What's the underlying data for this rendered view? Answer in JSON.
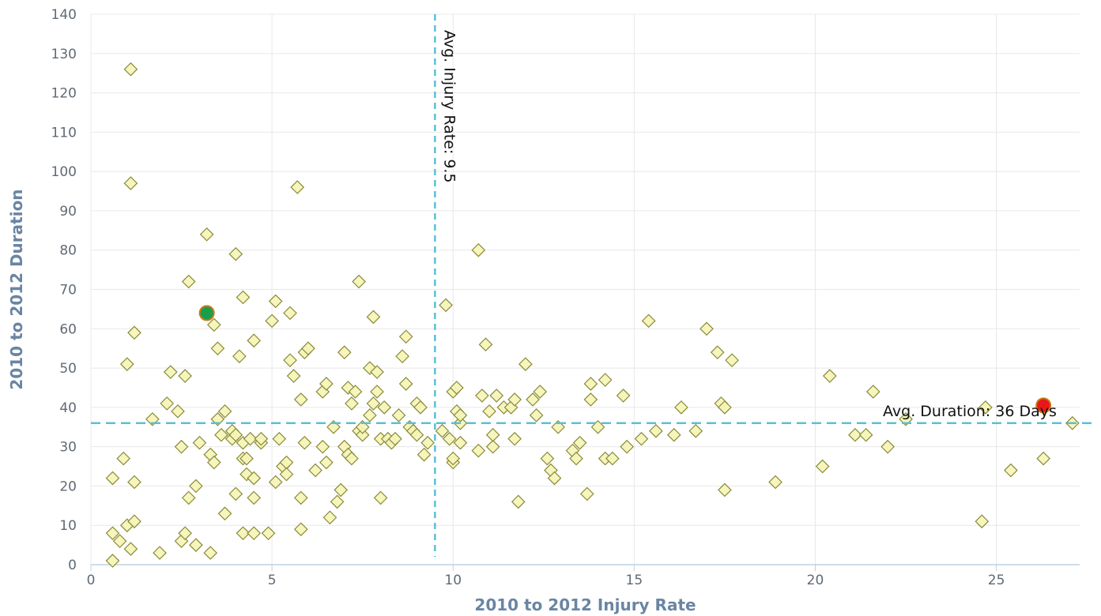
{
  "chart_data": {
    "type": "scatter",
    "title": "",
    "xlabel": "2010 to 2012 Injury Rate",
    "ylabel": "2010 to 2012 Duration",
    "xlim": [
      0,
      27.3
    ],
    "ylim": [
      0,
      140
    ],
    "x_ticks": [
      "0",
      "5",
      "10",
      "15",
      "20",
      "25"
    ],
    "y_ticks": [
      "0",
      "10",
      "20",
      "30",
      "40",
      "50",
      "60",
      "70",
      "80",
      "90",
      "100",
      "110",
      "120",
      "130",
      "140"
    ],
    "grid": true,
    "legend": "none",
    "colors": {
      "point_fill": "#f4f4b8",
      "point_stroke": "#8a8a3a",
      "reference_line": "#5bbfd6",
      "grid": "#e8e8e8",
      "axis_line": "#c0d0e0",
      "highlight_low": "#1a9e4a",
      "highlight_high": "#e81818",
      "highlight_stroke": "#c87a1a"
    },
    "reference_lines": [
      {
        "axis": "x",
        "value": 9.5,
        "label": "Avg. Injury Rate: 9.5"
      },
      {
        "axis": "y",
        "value": 36,
        "label": "Avg. Duration: 36 Days"
      }
    ],
    "series": [
      {
        "points": [
          [
            0.6,
            8
          ],
          [
            0.6,
            22
          ],
          [
            0.6,
            1
          ],
          [
            0.8,
            6
          ],
          [
            0.9,
            27
          ],
          [
            1.0,
            51
          ],
          [
            1.0,
            10
          ],
          [
            1.1,
            126
          ],
          [
            1.1,
            97
          ],
          [
            1.1,
            4
          ],
          [
            1.2,
            11
          ],
          [
            1.2,
            21
          ],
          [
            1.2,
            59
          ],
          [
            1.7,
            37
          ],
          [
            1.9,
            3
          ],
          [
            2.1,
            41
          ],
          [
            2.2,
            49
          ],
          [
            2.4,
            39
          ],
          [
            2.5,
            30
          ],
          [
            2.5,
            6
          ],
          [
            2.6,
            48
          ],
          [
            2.6,
            8
          ],
          [
            2.7,
            72
          ],
          [
            2.7,
            17
          ],
          [
            2.9,
            20
          ],
          [
            2.9,
            5
          ],
          [
            3.0,
            31
          ],
          [
            3.2,
            84
          ],
          [
            3.3,
            28
          ],
          [
            3.3,
            3
          ],
          [
            3.4,
            26
          ],
          [
            3.4,
            61
          ],
          [
            3.5,
            55
          ],
          [
            3.5,
            37
          ],
          [
            3.6,
            33
          ],
          [
            3.7,
            39
          ],
          [
            3.7,
            13
          ],
          [
            3.9,
            34
          ],
          [
            3.9,
            32
          ],
          [
            4.0,
            79
          ],
          [
            4.0,
            33
          ],
          [
            4.0,
            18
          ],
          [
            4.1,
            53
          ],
          [
            4.2,
            68
          ],
          [
            4.2,
            27
          ],
          [
            4.2,
            31
          ],
          [
            4.2,
            8
          ],
          [
            4.3,
            23
          ],
          [
            4.3,
            27
          ],
          [
            4.4,
            32
          ],
          [
            4.5,
            57
          ],
          [
            4.5,
            22
          ],
          [
            4.5,
            17
          ],
          [
            4.5,
            8
          ],
          [
            4.7,
            31
          ],
          [
            4.7,
            32
          ],
          [
            4.9,
            8
          ],
          [
            5.0,
            62
          ],
          [
            5.1,
            67
          ],
          [
            5.1,
            21
          ],
          [
            5.2,
            32
          ],
          [
            5.3,
            25
          ],
          [
            5.4,
            26
          ],
          [
            5.4,
            23
          ],
          [
            5.5,
            52
          ],
          [
            5.5,
            64
          ],
          [
            5.6,
            48
          ],
          [
            5.7,
            96
          ],
          [
            5.8,
            42
          ],
          [
            5.8,
            17
          ],
          [
            5.8,
            9
          ],
          [
            5.9,
            31
          ],
          [
            5.9,
            54
          ],
          [
            6.0,
            55
          ],
          [
            6.2,
            24
          ],
          [
            6.4,
            44
          ],
          [
            6.4,
            30
          ],
          [
            6.5,
            46
          ],
          [
            6.5,
            26
          ],
          [
            6.6,
            12
          ],
          [
            6.7,
            35
          ],
          [
            6.8,
            16
          ],
          [
            6.9,
            19
          ],
          [
            7.0,
            54
          ],
          [
            7.0,
            30
          ],
          [
            7.1,
            45
          ],
          [
            7.1,
            28
          ],
          [
            7.2,
            27
          ],
          [
            7.2,
            41
          ],
          [
            7.3,
            44
          ],
          [
            7.4,
            72
          ],
          [
            7.4,
            34
          ],
          [
            7.5,
            33
          ],
          [
            7.5,
            35
          ],
          [
            7.7,
            38
          ],
          [
            7.7,
            50
          ],
          [
            7.8,
            63
          ],
          [
            7.8,
            41
          ],
          [
            7.9,
            49
          ],
          [
            7.9,
            44
          ],
          [
            8.0,
            32
          ],
          [
            8.0,
            17
          ],
          [
            8.1,
            40
          ],
          [
            8.2,
            32
          ],
          [
            8.3,
            31
          ],
          [
            8.4,
            32
          ],
          [
            8.5,
            38
          ],
          [
            8.6,
            53
          ],
          [
            8.7,
            58
          ],
          [
            8.7,
            46
          ],
          [
            8.8,
            35
          ],
          [
            8.9,
            34
          ],
          [
            9.0,
            41
          ],
          [
            9.0,
            33
          ],
          [
            9.1,
            40
          ],
          [
            9.2,
            28
          ],
          [
            9.3,
            31
          ],
          [
            9.7,
            34
          ],
          [
            9.8,
            66
          ],
          [
            9.9,
            32
          ],
          [
            10.0,
            26
          ],
          [
            10.0,
            27
          ],
          [
            10.0,
            44
          ],
          [
            10.1,
            39
          ],
          [
            10.1,
            45
          ],
          [
            10.2,
            36
          ],
          [
            10.2,
            38
          ],
          [
            10.2,
            31
          ],
          [
            10.7,
            80
          ],
          [
            10.7,
            29
          ],
          [
            10.8,
            43
          ],
          [
            10.9,
            56
          ],
          [
            11.0,
            39
          ],
          [
            11.1,
            30
          ],
          [
            11.1,
            33
          ],
          [
            11.2,
            43
          ],
          [
            11.4,
            40
          ],
          [
            11.6,
            40
          ],
          [
            11.7,
            42
          ],
          [
            11.7,
            32
          ],
          [
            11.8,
            16
          ],
          [
            12.0,
            51
          ],
          [
            12.2,
            42
          ],
          [
            12.3,
            38
          ],
          [
            12.4,
            44
          ],
          [
            12.6,
            27
          ],
          [
            12.7,
            24
          ],
          [
            12.8,
            22
          ],
          [
            12.9,
            35
          ],
          [
            13.3,
            29
          ],
          [
            13.4,
            27
          ],
          [
            13.5,
            31
          ],
          [
            13.7,
            18
          ],
          [
            13.8,
            46
          ],
          [
            13.8,
            42
          ],
          [
            14.0,
            35
          ],
          [
            14.2,
            47
          ],
          [
            14.2,
            27
          ],
          [
            14.4,
            27
          ],
          [
            14.7,
            43
          ],
          [
            14.8,
            30
          ],
          [
            15.2,
            32
          ],
          [
            15.4,
            62
          ],
          [
            15.6,
            34
          ],
          [
            16.1,
            33
          ],
          [
            16.3,
            40
          ],
          [
            16.7,
            34
          ],
          [
            17.0,
            60
          ],
          [
            17.3,
            54
          ],
          [
            17.4,
            41
          ],
          [
            17.5,
            40
          ],
          [
            17.5,
            19
          ],
          [
            17.7,
            52
          ],
          [
            18.9,
            21
          ],
          [
            20.2,
            25
          ],
          [
            20.4,
            48
          ],
          [
            21.1,
            33
          ],
          [
            21.4,
            33
          ],
          [
            21.6,
            44
          ],
          [
            22.0,
            30
          ],
          [
            22.5,
            37
          ],
          [
            24.6,
            11
          ],
          [
            24.7,
            40
          ],
          [
            25.4,
            24
          ],
          [
            26.3,
            27
          ],
          [
            26.3,
            40
          ],
          [
            27.1,
            36
          ]
        ]
      }
    ],
    "highlights": [
      {
        "x": 3.2,
        "y": 64,
        "color": "#1a9e4a"
      },
      {
        "x": 26.3,
        "y": 40.5,
        "color": "#e81818"
      }
    ]
  }
}
